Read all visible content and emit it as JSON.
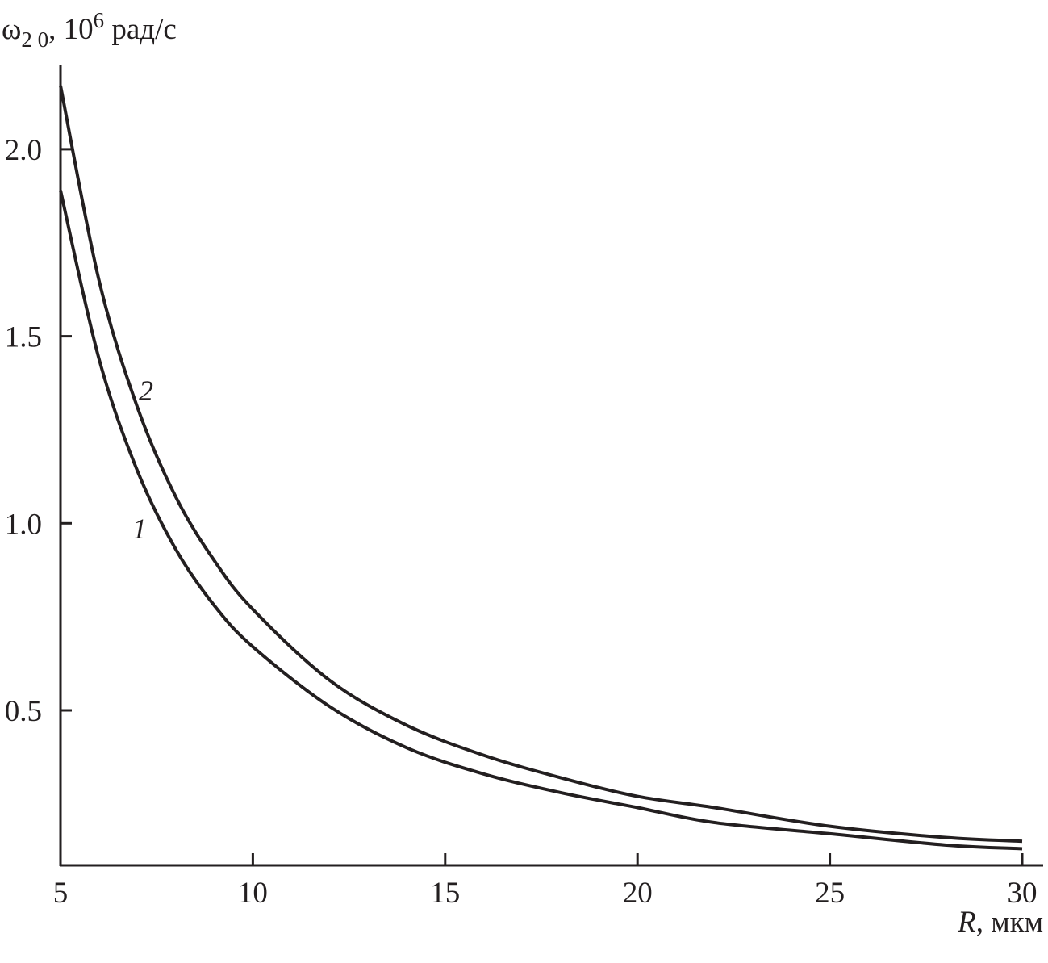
{
  "chart_data": {
    "type": "line",
    "ylabel": "ω",
    "ylabel_sub": "2 0",
    "ylabel_unit_prefix": ", 10",
    "ylabel_sup": "6",
    "ylabel_unit": " рад/с",
    "xlabel_var": "R",
    "xlabel_unit": ", мкм",
    "xlim": [
      5,
      30.5
    ],
    "ylim": [
      0.087,
      2.23
    ],
    "xticks": [
      5,
      10,
      15,
      20,
      25,
      30
    ],
    "xtick_labels": [
      "5",
      "10",
      "15",
      "20",
      "25",
      "30"
    ],
    "yticks": [
      0.5,
      1.0,
      1.5,
      2.0
    ],
    "ytick_labels": [
      "0.5",
      "1.0",
      "1.5",
      "2.0"
    ],
    "grid": false,
    "line_color": "#231f20",
    "x": [
      5,
      6,
      7,
      8,
      9,
      10,
      12,
      14,
      16,
      18,
      20,
      22,
      25,
      28,
      30
    ],
    "series": [
      {
        "name": "1",
        "values": [
          1.89,
          1.44,
          1.14,
          0.93,
          0.78,
          0.67,
          0.51,
          0.4,
          0.33,
          0.28,
          0.24,
          0.2,
          0.17,
          0.14,
          0.13
        ]
      },
      {
        "name": "2",
        "values": [
          2.17,
          1.65,
          1.31,
          1.07,
          0.9,
          0.77,
          0.58,
          0.46,
          0.38,
          0.32,
          0.27,
          0.24,
          0.19,
          0.16,
          0.15
        ]
      }
    ]
  }
}
